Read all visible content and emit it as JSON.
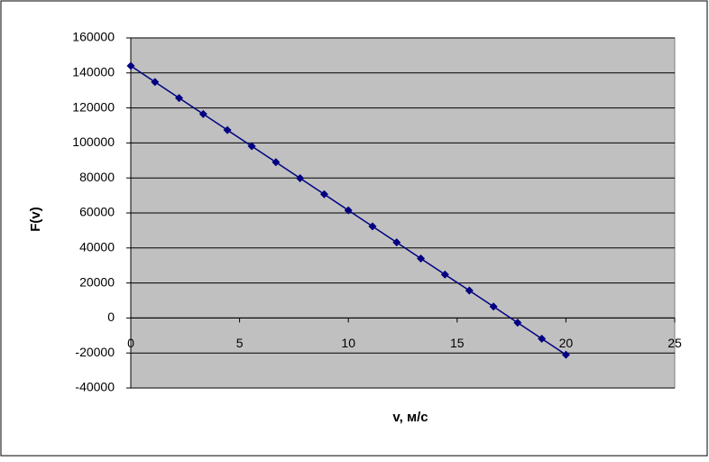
{
  "chart_data": {
    "type": "scatter",
    "x_label": "v, м/с",
    "y_label": "F(v)",
    "x": [
      0,
      1.11,
      2.22,
      3.33,
      4.44,
      5.56,
      6.67,
      7.78,
      8.89,
      10,
      11.11,
      12.22,
      13.33,
      14.44,
      15.56,
      16.67,
      17.78,
      18.89,
      20
    ],
    "values": [
      144000,
      134833,
      125667,
      116500,
      107333,
      98167,
      89000,
      79833,
      70667,
      61500,
      52333,
      43167,
      34000,
      24833,
      15667,
      6500,
      -2667,
      -11833,
      -21000
    ],
    "color": "#000080",
    "xlim": [
      0,
      25
    ],
    "xticks": [
      0,
      5,
      10,
      15,
      20,
      25
    ],
    "ylim": [
      -40000,
      160000
    ],
    "yticks": [
      -40000,
      -20000,
      0,
      20000,
      40000,
      60000,
      80000,
      100000,
      120000,
      140000,
      160000
    ],
    "grid": true
  }
}
